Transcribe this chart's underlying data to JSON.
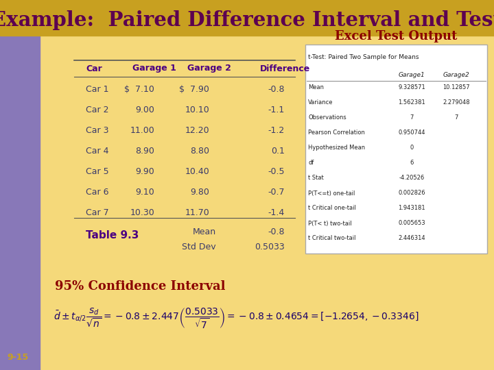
{
  "title": "Example:  Paired Difference Interval and Test",
  "title_color": "#5c0050",
  "bg_color_outer": "#c8a020",
  "bg_color_main": "#f5d97a",
  "left_bar_color": "#8878b8",
  "slide_number": "9-15",
  "slide_number_color": "#c8a020",
  "table_headers": [
    "Car",
    "Garage 1",
    "Garage 2",
    "Difference"
  ],
  "table_data": [
    [
      "Car 1",
      "$  7.10",
      "$  7.90",
      "-0.8"
    ],
    [
      "Car 2",
      "9.00",
      "10.10",
      "-1.1"
    ],
    [
      "Car 3",
      "11.00",
      "12.20",
      "-1.2"
    ],
    [
      "Car 4",
      "8.90",
      "8.80",
      "0.1"
    ],
    [
      "Car 5",
      "9.90",
      "10.40",
      "-0.5"
    ],
    [
      "Car 6",
      "9.10",
      "9.80",
      "-0.7"
    ],
    [
      "Car 7",
      "10.30",
      "11.70",
      "-1.4"
    ]
  ],
  "table_note_label": "Table 9.3",
  "table_mean_label": "Mean",
  "table_mean_value": "-0.8",
  "table_stddev_label": "Std Dev",
  "table_stddev_value": "0.5033",
  "excel_title": "Excel Test Output",
  "excel_title_color": "#8b0000",
  "excel_header": "t-Test: Paired Two Sample for Means",
  "excel_col1": "Garage1",
  "excel_col2": "Garage2",
  "excel_rows": [
    [
      "Mean",
      "9.328571",
      "10.12857"
    ],
    [
      "Variance",
      "1.562381",
      "2.279048"
    ],
    [
      "Observations",
      "7",
      "7"
    ],
    [
      "Pearson Correlation",
      "0.950744",
      ""
    ],
    [
      "Hypothesized Mean",
      "0",
      ""
    ],
    [
      "df",
      "6",
      ""
    ],
    [
      "t Stat",
      "-4.20526",
      ""
    ],
    [
      "P(T<=t) one-tail",
      "0.002826",
      ""
    ],
    [
      "t Critical one-tail",
      "1.943181",
      ""
    ],
    [
      "P(T< t) two-tail",
      "0.005653",
      ""
    ],
    [
      "t Critical two-tail",
      "2.446314",
      ""
    ]
  ],
  "ci_title": "95% Confidence Interval",
  "ci_title_color": "#8b0000",
  "ci_color": "#1a006b",
  "header_color": "#4b0082",
  "data_color": "#3a3a6a"
}
